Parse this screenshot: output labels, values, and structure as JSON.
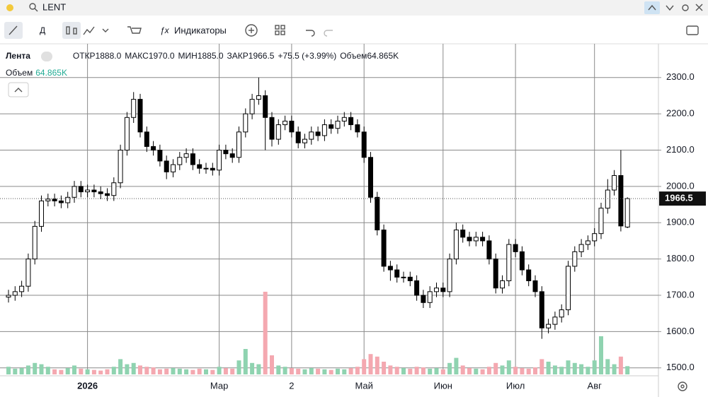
{
  "header": {
    "symbol": "LENT"
  },
  "toolbar": {
    "period": "Д",
    "indicators": "Индикаторы"
  },
  "legend": {
    "name": "Лента",
    "open_label": "ОТКР",
    "open": "1888.0",
    "high_label": "МАКС",
    "high": "1970.0",
    "low_label": "МИН",
    "low": "1885.0",
    "close_label": "ЗАКР",
    "change": "+75.5 (+3.99%)",
    "volume_label": "Объем",
    "volume": "64.865K",
    "volume_row_label": "Объем"
  },
  "chart_data": {
    "type": "candlestick",
    "up_color": "#ffffff",
    "down_color": "#000000",
    "volume_up_color": "#8fd3b0",
    "volume_down_color": "#f4a8b0",
    "ylim": [
      1482,
      2393
    ],
    "yticks": [
      {
        "value": 1500,
        "label": "1500.0"
      },
      {
        "value": 1600,
        "label": "1600.0"
      },
      {
        "value": 1700,
        "label": "1700.0"
      },
      {
        "value": 1800,
        "label": "1800.0"
      },
      {
        "value": 1900,
        "label": "1900.0"
      },
      {
        "value": 2000,
        "label": "2000.0"
      },
      {
        "value": 2100,
        "label": "2100.0"
      },
      {
        "value": 2200,
        "label": "2200.0"
      },
      {
        "value": 2300,
        "label": "2300.0"
      }
    ],
    "xticks": [
      {
        "value": 12,
        "label": "2026"
      },
      {
        "value": 32,
        "label": "Мар"
      },
      {
        "value": 43,
        "label": "2"
      },
      {
        "value": 54,
        "label": "Май"
      },
      {
        "value": 66,
        "label": "Июн"
      },
      {
        "value": 77,
        "label": "Июл"
      },
      {
        "value": 89,
        "label": "Авг"
      }
    ],
    "volume_lim": [
      0,
      1000000
    ],
    "grid": true,
    "open": [
      1695,
      1700,
      1710,
      1725,
      1800,
      1890,
      1960,
      1965,
      1960,
      1955,
      1970,
      2000,
      1985,
      1990,
      1985,
      1980,
      1975,
      2010,
      2100,
      2190,
      2240,
      2150,
      2110,
      2100,
      2070,
      2040,
      2060,
      2080,
      2090,
      2060,
      2050,
      2050,
      2045,
      2100,
      2090,
      2080,
      2150,
      2200,
      2240,
      2250,
      2190,
      2130,
      2170,
      2180,
      2150,
      2120,
      2130,
      2150,
      2140,
      2170,
      2160,
      2180,
      2190,
      2170,
      2150,
      2080,
      1970,
      1880,
      1780,
      1770,
      1750,
      1750,
      1740,
      1700,
      1680,
      1710,
      1720,
      1710,
      1800,
      1880,
      1860,
      1850,
      1860,
      1850,
      1800,
      1720,
      1740,
      1840,
      1820,
      1770,
      1740,
      1710,
      1610,
      1620,
      1640,
      1660,
      1780,
      1820,
      1840,
      1850,
      1870,
      1940,
      1990,
      2030,
      1888
    ],
    "high": [
      1715,
      1725,
      1740,
      1815,
      1905,
      1975,
      1980,
      1980,
      1975,
      1985,
      2015,
      2015,
      2005,
      2005,
      2000,
      1995,
      2025,
      2115,
      2205,
      2260,
      2255,
      2165,
      2125,
      2115,
      2085,
      2075,
      2095,
      2105,
      2105,
      2075,
      2065,
      2065,
      2115,
      2115,
      2105,
      2165,
      2215,
      2255,
      2300,
      2265,
      2205,
      2185,
      2195,
      2195,
      2165,
      2145,
      2165,
      2165,
      2185,
      2185,
      2195,
      2205,
      2205,
      2185,
      2165,
      2095,
      1985,
      1895,
      1795,
      1785,
      1765,
      1765,
      1755,
      1715,
      1725,
      1735,
      1735,
      1815,
      1900,
      1895,
      1875,
      1875,
      1875,
      1865,
      1815,
      1755,
      1855,
      1855,
      1835,
      1785,
      1755,
      1725,
      1635,
      1655,
      1675,
      1795,
      1835,
      1855,
      1865,
      1885,
      1955,
      2020,
      2045,
      2100,
      1970
    ],
    "low": [
      1680,
      1685,
      1695,
      1710,
      1785,
      1875,
      1945,
      1945,
      1940,
      1940,
      1955,
      1970,
      1970,
      1970,
      1965,
      1960,
      1960,
      1995,
      2085,
      2175,
      2135,
      2095,
      2085,
      2055,
      2020,
      2025,
      2045,
      2065,
      2045,
      2035,
      2035,
      2030,
      2030,
      2075,
      2065,
      2065,
      2135,
      2185,
      2225,
      2100,
      2110,
      2115,
      2155,
      2135,
      2105,
      2105,
      2115,
      2125,
      2125,
      2145,
      2145,
      2165,
      2155,
      2135,
      2065,
      1955,
      1865,
      1765,
      1740,
      1735,
      1735,
      1725,
      1685,
      1665,
      1665,
      1695,
      1695,
      1695,
      1785,
      1845,
      1835,
      1835,
      1835,
      1785,
      1705,
      1705,
      1725,
      1805,
      1755,
      1725,
      1695,
      1580,
      1595,
      1605,
      1625,
      1645,
      1765,
      1805,
      1825,
      1835,
      1855,
      1925,
      1975,
      1876,
      1885
    ],
    "close": [
      1700,
      1710,
      1725,
      1800,
      1890,
      1960,
      1965,
      1960,
      1955,
      1970,
      2000,
      1985,
      1990,
      1985,
      1980,
      1975,
      2010,
      2100,
      2190,
      2240,
      2150,
      2110,
      2100,
      2070,
      2040,
      2060,
      2080,
      2090,
      2060,
      2050,
      2050,
      2045,
      2100,
      2090,
      2080,
      2150,
      2200,
      2240,
      2250,
      2190,
      2130,
      2170,
      2180,
      2150,
      2120,
      2130,
      2150,
      2140,
      2170,
      2160,
      2180,
      2190,
      2170,
      2150,
      2080,
      1970,
      1880,
      1780,
      1770,
      1750,
      1750,
      1740,
      1700,
      1680,
      1710,
      1720,
      1710,
      1800,
      1880,
      1860,
      1850,
      1860,
      1850,
      1800,
      1720,
      1740,
      1840,
      1820,
      1770,
      1740,
      1710,
      1610,
      1620,
      1640,
      1660,
      1780,
      1820,
      1840,
      1850,
      1870,
      1940,
      1990,
      2030,
      1891,
      1966.5
    ],
    "volume": [
      60000,
      45000,
      50000,
      70000,
      90000,
      80000,
      60000,
      40000,
      35000,
      50000,
      70000,
      45000,
      40000,
      35000,
      30000,
      40000,
      60000,
      120000,
      80000,
      90000,
      70000,
      60000,
      55000,
      40000,
      45000,
      50000,
      45000,
      40000,
      35000,
      45000,
      40000,
      35000,
      60000,
      50000,
      45000,
      110000,
      200000,
      90000,
      80000,
      650000,
      150000,
      70000,
      60000,
      50000,
      45000,
      40000,
      50000,
      45000,
      40000,
      35000,
      45000,
      40000,
      50000,
      60000,
      120000,
      160000,
      140000,
      100000,
      70000,
      60000,
      50000,
      45000,
      60000,
      55000,
      45000,
      50000,
      40000,
      90000,
      130000,
      70000,
      50000,
      45000,
      40000,
      60000,
      90000,
      70000,
      110000,
      60000,
      50000,
      45000,
      55000,
      120000,
      100000,
      70000,
      60000,
      110000,
      90000,
      80000,
      60000,
      110000,
      300000,
      120000,
      80000,
      140000,
      64865
    ]
  }
}
